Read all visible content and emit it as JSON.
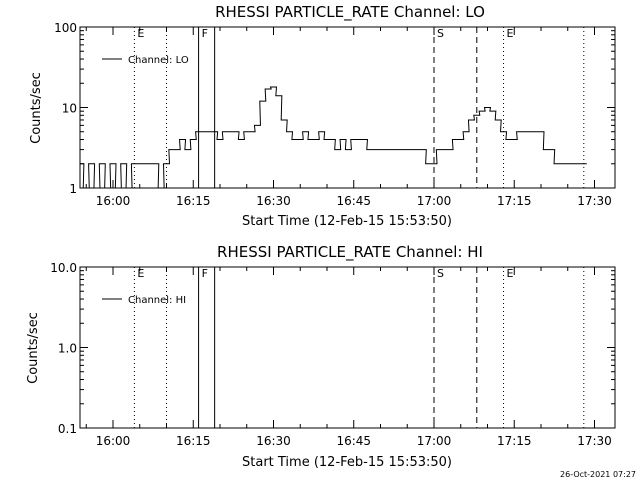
{
  "chart_data": [
    {
      "type": "line",
      "title": "RHESSI PARTICLE_RATE Channel: LO",
      "xlabel": "Start Time (12-Feb-15 15:53:50)",
      "ylabel": "Counts/sec",
      "yscale": "log",
      "ylim": [
        1,
        100
      ],
      "xlim_minutes_after_start": [
        0,
        100
      ],
      "xtick_labels": [
        "16:00",
        "16:15",
        "16:30",
        "16:45",
        "17:00",
        "17:15",
        "17:30"
      ],
      "xtick_values": [
        "16:00",
        "16:15",
        "16:30",
        "16:45",
        "17:00",
        "17:15",
        "17:30"
      ],
      "ytick_labels": [
        "1",
        "10",
        "100"
      ],
      "ytick_values": [
        1,
        10,
        100
      ],
      "legend": {
        "entry": "Channel: LO",
        "position": "top-left"
      },
      "event_markers": [
        {
          "time": "16:04",
          "style": "dotted",
          "label": "E"
        },
        {
          "time": "16:10",
          "style": "dotted",
          "label": ""
        },
        {
          "time": "16:16",
          "style": "solid",
          "label": "F"
        },
        {
          "time": "16:19",
          "style": "solid",
          "label": ""
        },
        {
          "time": "17:00",
          "style": "dashed",
          "label": "S"
        },
        {
          "time": "17:08",
          "style": "dashed",
          "label": ""
        },
        {
          "time": "17:13",
          "style": "dotted",
          "label": "E"
        },
        {
          "time": "17:28",
          "style": "dotted",
          "label": ""
        }
      ],
      "series": [
        {
          "name": "Channel: LO",
          "x": [
            "15:54",
            "15:55",
            "15:56",
            "15:57",
            "15:58",
            "15:59",
            "16:00",
            "16:01",
            "16:02",
            "16:03",
            "16:04",
            "16:05",
            "16:06",
            "16:07",
            "16:08",
            "16:09",
            "16:10",
            "16:11",
            "16:12",
            "16:13",
            "16:14",
            "16:15",
            "16:16",
            "16:17",
            "16:18",
            "16:19",
            "16:20",
            "16:21",
            "16:22",
            "16:23",
            "16:24",
            "16:25",
            "16:26",
            "16:27",
            "16:28",
            "16:29",
            "16:30",
            "16:31",
            "16:32",
            "16:33",
            "16:34",
            "16:35",
            "16:36",
            "16:37",
            "16:38",
            "16:39",
            "16:40",
            "16:41",
            "16:42",
            "16:43",
            "16:44",
            "16:45",
            "16:46",
            "16:47",
            "16:48",
            "16:49",
            "16:50",
            "16:51",
            "16:52",
            "16:53",
            "16:54",
            "16:55",
            "16:56",
            "16:57",
            "16:58",
            "16:59",
            "17:00",
            "17:01",
            "17:02",
            "17:03",
            "17:04",
            "17:05",
            "17:06",
            "17:07",
            "17:08",
            "17:09",
            "17:10",
            "17:11",
            "17:12",
            "17:13",
            "17:14",
            "17:15",
            "17:16",
            "17:17",
            "17:18",
            "17:19",
            "17:20",
            "17:21",
            "17:22",
            "17:23",
            "17:24",
            "17:25",
            "17:26",
            "17:27",
            "17:28"
          ],
          "y": [
            2,
            1,
            2,
            1,
            2,
            1,
            2,
            1,
            2,
            1,
            2,
            2,
            2,
            2,
            2,
            1,
            2,
            3,
            3,
            4,
            3,
            4,
            5,
            5,
            5,
            5,
            4,
            5,
            5,
            5,
            4,
            5,
            5,
            6,
            12,
            17,
            18,
            14,
            7,
            5,
            4,
            4,
            5,
            4,
            4,
            5,
            4,
            4,
            3,
            4,
            3,
            4,
            4,
            4,
            3,
            3,
            3,
            3,
            3,
            3,
            3,
            3,
            3,
            3,
            3,
            2,
            2,
            3,
            3,
            3,
            4,
            4,
            5,
            7,
            8,
            9,
            10,
            9,
            7,
            5,
            4,
            4,
            5,
            5,
            5,
            5,
            5,
            3,
            3,
            2,
            2,
            2,
            2,
            2,
            2
          ]
        }
      ]
    },
    {
      "type": "line",
      "title": "RHESSI PARTICLE_RATE Channel: HI",
      "xlabel": "Start Time (12-Feb-15 15:53:50)",
      "ylabel": "Counts/sec",
      "yscale": "log",
      "ylim": [
        0.1,
        10
      ],
      "xtick_labels": [
        "16:00",
        "16:15",
        "16:30",
        "16:45",
        "17:00",
        "17:15",
        "17:30"
      ],
      "xtick_values": [
        "16:00",
        "16:15",
        "16:30",
        "16:45",
        "17:00",
        "17:15",
        "17:30"
      ],
      "ytick_labels": [
        "0.1",
        "1.0",
        "10.0"
      ],
      "ytick_values": [
        0.1,
        1,
        10
      ],
      "legend": {
        "entry": "Channel: HI",
        "position": "top-left"
      },
      "event_markers": [
        {
          "time": "16:04",
          "style": "dotted",
          "label": "E"
        },
        {
          "time": "16:10",
          "style": "dotted",
          "label": ""
        },
        {
          "time": "16:16",
          "style": "solid",
          "label": "F"
        },
        {
          "time": "16:19",
          "style": "solid",
          "label": ""
        },
        {
          "time": "17:00",
          "style": "dashed",
          "label": "S"
        },
        {
          "time": "17:08",
          "style": "dashed",
          "label": ""
        },
        {
          "time": "17:13",
          "style": "dotted",
          "label": "E"
        },
        {
          "time": "17:28",
          "style": "dotted",
          "label": ""
        }
      ],
      "series": [
        {
          "name": "Channel: HI",
          "x": [],
          "y": []
        }
      ]
    }
  ],
  "footer_timestamp": "26-Oct-2021 07:27"
}
